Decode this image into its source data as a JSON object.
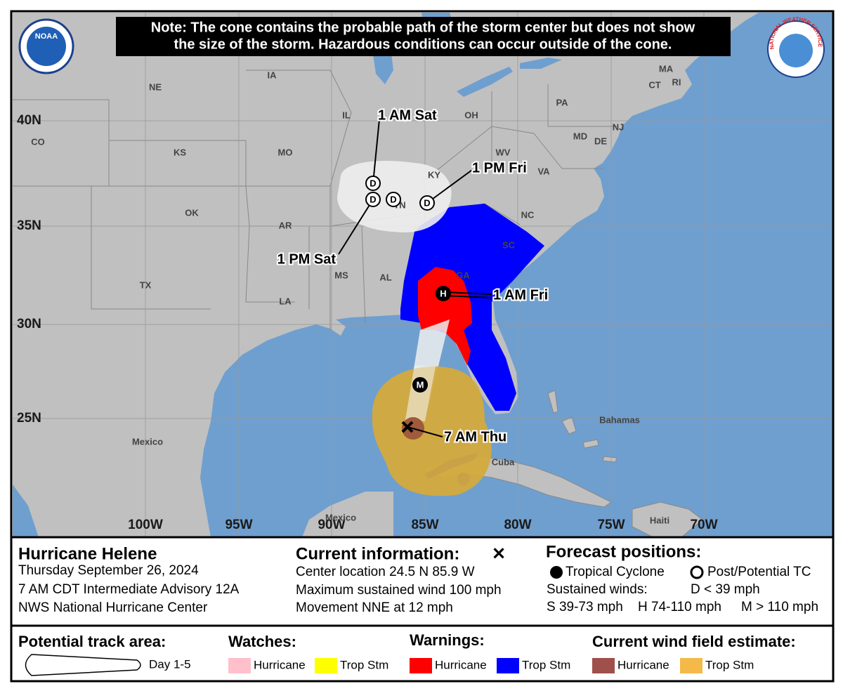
{
  "header": {
    "note": [
      "Note: The cone contains the probable path of the storm center but does not show",
      "the size of the storm. Hazardous conditions can occur outside of the cone."
    ],
    "noaa_logo": "NOAA",
    "nws_logo": "NATIONAL WEATHER SERVICE"
  },
  "map": {
    "latitudes": [
      "40N",
      "35N",
      "30N",
      "25N"
    ],
    "longitudes": [
      "100W",
      "95W",
      "90W",
      "85W",
      "80W",
      "75W",
      "70W"
    ],
    "places": [
      "NE",
      "IA",
      "IL",
      "OH",
      "PA",
      "MA",
      "CT",
      "RI",
      "NJ",
      "MD",
      "DE",
      "CO",
      "KS",
      "MO",
      "KY",
      "WV",
      "VA",
      "TN",
      "NC",
      "OK",
      "AR",
      "SC",
      "GA",
      "MS",
      "AL",
      "TX",
      "LA",
      "Mexico",
      "Bahamas",
      "Cuba",
      "Mexico",
      "Haiti"
    ],
    "markers": [
      "M",
      "H",
      "D",
      "D",
      "D",
      "D"
    ],
    "time_labels": [
      "7 AM Thu",
      "1 AM Fri",
      "1 PM Fri",
      "1 AM Sat",
      "1 PM Sat"
    ]
  },
  "info": {
    "storm": {
      "name": "Hurricane Helene",
      "lines": [
        "Thursday September 26, 2024",
        "7 AM CDT Intermediate Advisory 12A",
        "NWS National Hurricane Center"
      ]
    },
    "current": {
      "title": "Current information:",
      "symbol": "✕",
      "lines": [
        "Center location 24.5 N 85.9 W",
        "Maximum sustained wind 100 mph",
        "Movement NNE at 12 mph"
      ]
    },
    "forecast": {
      "title": "Forecast positions:",
      "tropical_cyclone": "Tropical Cyclone",
      "post_tc": "Post/Potential TC",
      "sustained": "Sustained winds:",
      "d": "D < 39 mph",
      "s": "S 39-73 mph",
      "h": "H 74-110 mph",
      "m": "M > 110 mph"
    }
  },
  "legend": {
    "track": {
      "title": "Potential track area:",
      "day": "Day 1-5"
    },
    "watches": {
      "title": "Watches:",
      "items": [
        "Hurricane",
        "Trop Stm"
      ]
    },
    "warnings": {
      "title": "Warnings:",
      "items": [
        "Hurricane",
        "Trop Stm"
      ]
    },
    "wind": {
      "title": "Current wind field estimate:",
      "items": [
        "Hurricane",
        "Trop Stm"
      ]
    }
  }
}
